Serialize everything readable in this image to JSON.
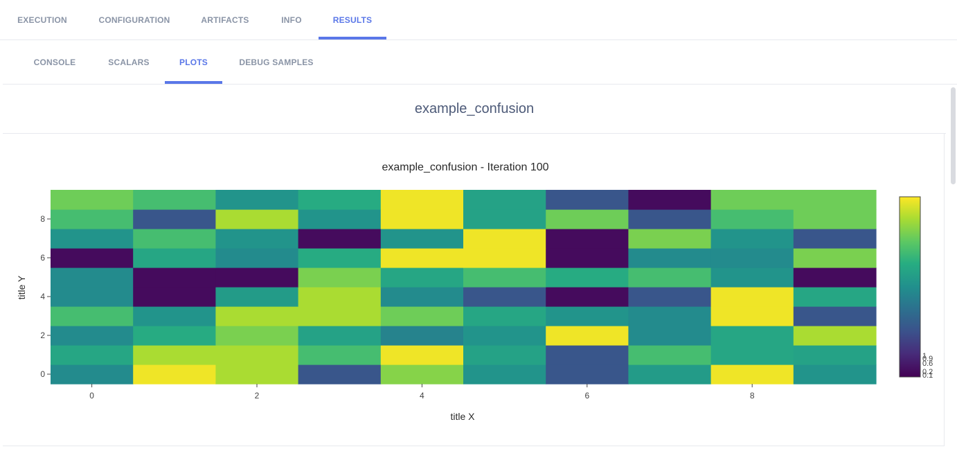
{
  "top_tabs": [
    {
      "label": "EXECUTION",
      "active": false
    },
    {
      "label": "CONFIGURATION",
      "active": false
    },
    {
      "label": "ARTIFACTS",
      "active": false
    },
    {
      "label": "INFO",
      "active": false
    },
    {
      "label": "RESULTS",
      "active": true
    }
  ],
  "sub_tabs": [
    {
      "label": "CONSOLE",
      "active": false
    },
    {
      "label": "SCALARS",
      "active": false
    },
    {
      "label": "PLOTS",
      "active": true
    },
    {
      "label": "DEBUG SAMPLES",
      "active": false
    }
  ],
  "panel": {
    "title": "example_confusion"
  },
  "colors": {
    "accent": "#5a77e8"
  },
  "chart_data": {
    "type": "heatmap",
    "title": "example_confusion - Iteration 100",
    "xlabel": "title X",
    "ylabel": "title Y",
    "x": [
      0,
      1,
      2,
      3,
      4,
      5,
      6,
      7,
      8,
      9
    ],
    "y": [
      0,
      1,
      2,
      3,
      4,
      5,
      6,
      7,
      8,
      9
    ],
    "xticks": [
      "0",
      "2",
      "4",
      "6",
      "8"
    ],
    "yticks": [
      "0",
      "2",
      "4",
      "6",
      "8"
    ],
    "zmin": 0.0,
    "zmax": 1.0,
    "colorscale": "viridis",
    "colorbar_ticks": [
      "1",
      "0.9",
      "0.6",
      "0.2",
      "0.1"
    ],
    "z": [
      [
        0.48,
        0.98,
        0.88,
        0.27,
        0.82,
        0.52,
        0.27,
        0.55,
        0.98,
        0.52
      ],
      [
        0.6,
        0.88,
        0.88,
        0.7,
        0.98,
        0.58,
        0.27,
        0.7,
        0.6,
        0.58
      ],
      [
        0.48,
        0.62,
        0.8,
        0.58,
        0.45,
        0.52,
        0.98,
        0.48,
        0.6,
        0.88
      ],
      [
        0.7,
        0.52,
        0.88,
        0.88,
        0.78,
        0.6,
        0.52,
        0.48,
        0.98,
        0.27
      ],
      [
        0.48,
        0.03,
        0.55,
        0.88,
        0.48,
        0.27,
        0.03,
        0.27,
        0.98,
        0.6
      ],
      [
        0.48,
        0.03,
        0.03,
        0.8,
        0.6,
        0.7,
        0.62,
        0.7,
        0.52,
        0.03
      ],
      [
        0.03,
        0.6,
        0.48,
        0.62,
        0.98,
        0.98,
        0.03,
        0.48,
        0.48,
        0.8
      ],
      [
        0.52,
        0.7,
        0.52,
        0.03,
        0.52,
        0.98,
        0.03,
        0.8,
        0.52,
        0.27
      ],
      [
        0.7,
        0.27,
        0.88,
        0.52,
        0.98,
        0.58,
        0.78,
        0.27,
        0.7,
        0.78
      ],
      [
        0.78,
        0.7,
        0.52,
        0.62,
        0.98,
        0.58,
        0.27,
        0.03,
        0.78,
        0.78
      ]
    ]
  }
}
